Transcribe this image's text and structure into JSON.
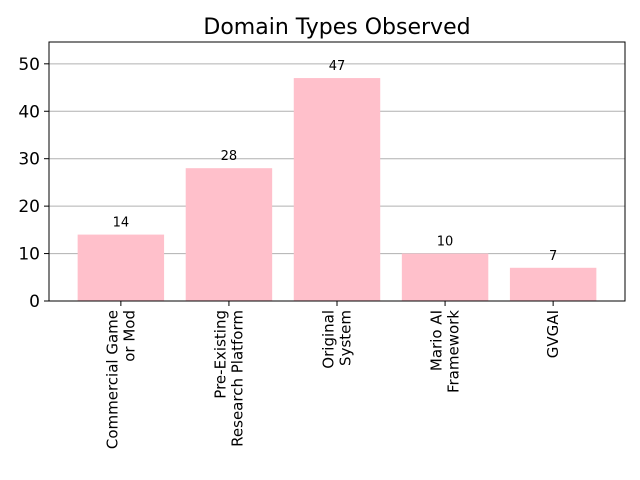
{
  "chart_data": {
    "type": "bar",
    "title": "Domain Types Observed",
    "xlabel": "",
    "ylabel": "",
    "categories": [
      [
        "Commercial Game",
        "or Mod"
      ],
      [
        "Pre-Existing",
        "Research Platform"
      ],
      [
        "Original",
        "System"
      ],
      [
        "Mario AI",
        "Framework"
      ],
      [
        "GVGAI"
      ]
    ],
    "values": [
      14,
      28,
      47,
      10,
      7
    ],
    "data_labels": [
      "14",
      "28",
      "47",
      "10",
      "7"
    ],
    "ylim": [
      0,
      54.6
    ],
    "yticks": [
      0,
      10,
      20,
      30,
      40,
      50
    ],
    "grid": "y",
    "legend": "none",
    "bar_color": "#ffc0cb",
    "grid_color": "#b0b0b0"
  }
}
